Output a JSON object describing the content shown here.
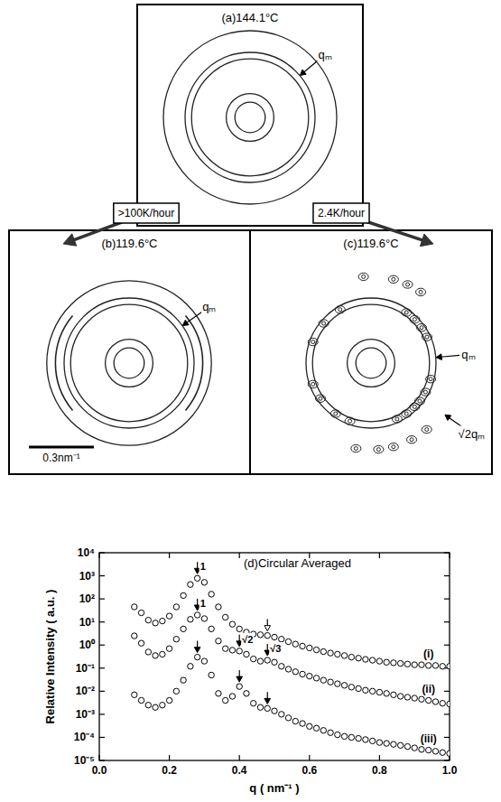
{
  "transitions": [
    ">100K/hour",
    "2.4K/hour"
  ],
  "chart_data": [
    {
      "type": "pattern",
      "title": "(a)144.1°C",
      "rings": [
        0.07,
        0.11,
        0.27,
        0.3,
        0.4
      ],
      "annotations": [
        {
          "text": "qₘ",
          "q": 0.285
        }
      ]
    },
    {
      "type": "pattern",
      "title": "(b)119.6°C",
      "rings": [
        0.07,
        0.11,
        0.27,
        0.3,
        0.38
      ],
      "arcs": [
        {
          "q": 0.34,
          "from": 140,
          "to": 220
        },
        {
          "q": 0.34,
          "from": -40,
          "to": 40
        }
      ],
      "annotations": [
        {
          "text": "qₘ",
          "q": 0.285
        }
      ],
      "scale_bar": {
        "value": 0.3,
        "label": "0.3nm⁻¹"
      }
    },
    {
      "type": "pattern",
      "title": "(c)119.6°C",
      "rings": [
        0.07,
        0.11,
        0.27,
        0.3
      ],
      "spots": {
        "q": [
          0.285,
          0.285,
          0.285,
          0.285,
          0.285,
          0.285,
          0.285,
          0.285,
          0.285,
          0.285,
          0.285,
          0.285,
          0.285,
          0.285,
          0.285,
          0.285,
          0.285,
          0.4,
          0.4,
          0.4,
          0.4,
          0.4,
          0.4,
          0.4,
          0.4,
          0.4
        ],
        "angle": [
          -65,
          -55,
          -45,
          -38,
          -28,
          -15,
          25,
          35,
          45,
          55,
          120,
          140,
          160,
          200,
          215,
          235,
          250,
          -85,
          -75,
          -62,
          -50,
          -100,
          55,
          65,
          75,
          95
        ]
      },
      "annotations": [
        {
          "text": "qₘ",
          "q": 0.285
        },
        {
          "text": "√2qₘ",
          "q": 0.4
        }
      ]
    },
    {
      "type": "scatter",
      "title": "(d)Circular Averaged",
      "x_label": "q ( nm⁻¹ )",
      "y_label": "Relative Intensity ( a.u. )",
      "log": "y",
      "marker": "open-circle",
      "xlim": [
        0,
        1
      ],
      "xticks": [
        {
          "value": 0,
          "label": "0.0"
        },
        0.2,
        0.4,
        0.6,
        0.8,
        {
          "value": 1,
          "label": "1.0"
        }
      ],
      "ylim": [
        1e-05,
        10000
      ],
      "yticks": [
        {
          "value": 1e-05,
          "label": "10⁻⁵"
        },
        {
          "value": 0.0001,
          "label": "10⁻⁴"
        },
        {
          "value": 0.001,
          "label": "10⁻³"
        },
        {
          "value": 0.01,
          "label": "10⁻²"
        },
        {
          "value": 0.1,
          "label": "10⁻¹"
        },
        {
          "value": 1,
          "label": "10⁰"
        },
        {
          "value": 10,
          "label": "10¹"
        },
        {
          "value": 100,
          "label": "10²"
        },
        {
          "value": 1000,
          "label": "10³"
        },
        {
          "value": 10000,
          "label": "10⁴"
        }
      ],
      "x": [
        0.1,
        0.12,
        0.14,
        0.16,
        0.18,
        0.2,
        0.22,
        0.24,
        0.26,
        0.28,
        0.3,
        0.32,
        0.34,
        0.36,
        0.38,
        0.4,
        0.42,
        0.44,
        0.46,
        0.48,
        0.5,
        0.52,
        0.54,
        0.56,
        0.58,
        0.6,
        0.62,
        0.64,
        0.66,
        0.68,
        0.7,
        0.72,
        0.74,
        0.76,
        0.78,
        0.8,
        0.82,
        0.84,
        0.86,
        0.88,
        0.9,
        0.92,
        0.94,
        0.96,
        0.98,
        1.0
      ],
      "series": [
        {
          "name": "(i)",
          "color": "#000000",
          "values": [
            45,
            25,
            12,
            9,
            11,
            18,
            45,
            140,
            420,
            780,
            520,
            160,
            45,
            16,
            8,
            5,
            3.6,
            3,
            2.8,
            2.6,
            2.2,
            1.8,
            1.4,
            1.1,
            0.9,
            0.75,
            0.62,
            0.52,
            0.45,
            0.4,
            0.35,
            0.3,
            0.27,
            0.24,
            0.22,
            0.2,
            0.18,
            0.17,
            0.16,
            0.15,
            0.14,
            0.14,
            0.13,
            0.13,
            0.12,
            0.12
          ]
        },
        {
          "name": "(ii)",
          "color": "#000000",
          "values": [
            2.5,
            1.2,
            0.5,
            0.35,
            0.4,
            0.7,
            1.8,
            5,
            13,
            20,
            14,
            5,
            1.5,
            0.7,
            0.6,
            0.55,
            0.4,
            0.25,
            0.2,
            0.22,
            0.18,
            0.12,
            0.09,
            0.07,
            0.055,
            0.045,
            0.037,
            0.03,
            0.025,
            0.021,
            0.018,
            0.015,
            0.013,
            0.011,
            0.01,
            0.009,
            0.008,
            0.007,
            0.006,
            0.0055,
            0.005,
            0.0045,
            0.004,
            0.0035,
            0.003,
            0.0028
          ]
        },
        {
          "name": "(iii)",
          "color": "#000000",
          "values": [
            0.007,
            0.004,
            0.0025,
            0.002,
            0.0025,
            0.004,
            0.01,
            0.03,
            0.12,
            0.3,
            0.2,
            0.05,
            0.008,
            0.004,
            0.006,
            0.016,
            0.008,
            0.003,
            0.002,
            0.0018,
            0.0014,
            0.001,
            0.0007,
            0.0005,
            0.0004,
            0.0003,
            0.00025,
            0.0002,
            0.00016,
            0.00013,
            0.00011,
            0.0001,
            9e-05,
            8e-05,
            7e-05,
            6e-05,
            5.5e-05,
            5e-05,
            4.5e-05,
            4e-05,
            3.5e-05,
            3e-05,
            2.8e-05,
            2.5e-05,
            2.2e-05,
            2e-05
          ]
        }
      ],
      "peak_marks": [
        {
          "series": 0,
          "x": 0.28,
          "label": "1"
        },
        {
          "series": 0,
          "x": 0.48,
          "marker": "open"
        },
        {
          "series": 1,
          "x": 0.28,
          "label": "1"
        },
        {
          "series": 1,
          "x": 0.4,
          "label": "√2"
        },
        {
          "series": 1,
          "x": 0.48,
          "label": "√3"
        },
        {
          "series": 2,
          "x": 0.28
        },
        {
          "series": 2,
          "x": 0.4
        },
        {
          "series": 2,
          "x": 0.48
        }
      ]
    }
  ]
}
